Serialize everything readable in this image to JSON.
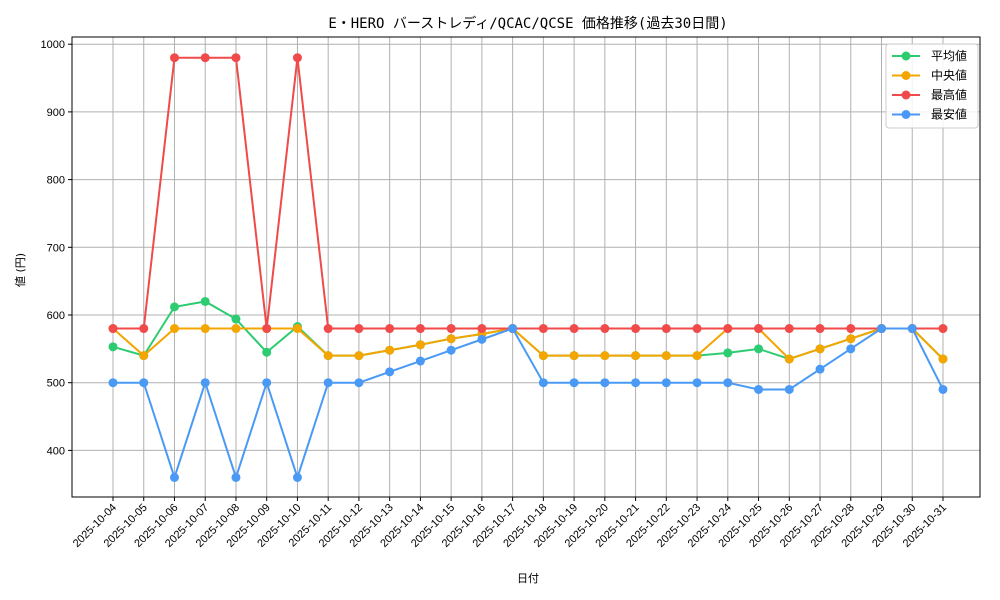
{
  "chart_data": {
    "type": "line",
    "title": "E・HERO バーストレディ/QCAC/QCSE 価格推移(過去30日間)",
    "xlabel": "日付",
    "ylabel": "値 (円)",
    "ylim": [
      330,
      1010
    ],
    "yticks": [
      400,
      500,
      600,
      700,
      800,
      900,
      1000
    ],
    "grid": true,
    "legend_position": "upper right",
    "x": [
      "2025-10-04",
      "2025-10-05",
      "2025-10-06",
      "2025-10-07",
      "2025-10-08",
      "2025-10-09",
      "2025-10-10",
      "2025-10-11",
      "2025-10-12",
      "2025-10-13",
      "2025-10-14",
      "2025-10-15",
      "2025-10-16",
      "2025-10-17",
      "2025-10-18",
      "2025-10-19",
      "2025-10-20",
      "2025-10-21",
      "2025-10-22",
      "2025-10-23",
      "2025-10-24",
      "2025-10-25",
      "2025-10-26",
      "2025-10-27",
      "2025-10-28",
      "2025-10-29",
      "2025-10-30",
      "2025-10-31"
    ],
    "series": [
      {
        "name": "平均値",
        "color": "#2ecc71",
        "values": [
          553,
          540,
          612,
          620,
          594,
          545,
          583,
          540,
          540,
          548,
          556,
          565,
          572,
          580,
          540,
          540,
          540,
          540,
          540,
          540,
          544,
          550,
          535,
          550,
          565,
          580,
          580,
          535
        ]
      },
      {
        "name": "中央値",
        "color": "#f5a500",
        "values": [
          580,
          540,
          580,
          580,
          580,
          580,
          580,
          540,
          540,
          548,
          556,
          565,
          572,
          580,
          540,
          540,
          540,
          540,
          540,
          540,
          580,
          580,
          535,
          550,
          565,
          580,
          580,
          535
        ]
      },
      {
        "name": "最高値",
        "color": "#f04a4a",
        "values": [
          580,
          580,
          980,
          980,
          980,
          580,
          980,
          580,
          580,
          580,
          580,
          580,
          580,
          580,
          580,
          580,
          580,
          580,
          580,
          580,
          580,
          580,
          580,
          580,
          580,
          580,
          580,
          580
        ]
      },
      {
        "name": "最安値",
        "color": "#4a9af5",
        "values": [
          500,
          500,
          360,
          500,
          360,
          500,
          360,
          500,
          500,
          516,
          532,
          548,
          564,
          580,
          500,
          500,
          500,
          500,
          500,
          500,
          500,
          490,
          490,
          520,
          550,
          580,
          580,
          490
        ]
      }
    ]
  }
}
